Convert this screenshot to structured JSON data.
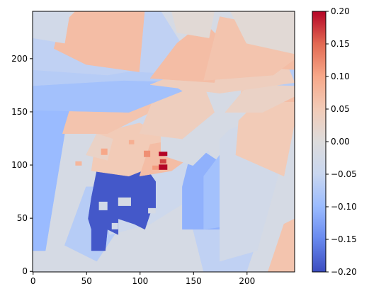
{
  "chart_data": {
    "type": "heatmap",
    "title": "",
    "xlabel": "",
    "ylabel": "",
    "image_size": [
      245,
      245
    ],
    "xlim": [
      -0.5,
      244.5
    ],
    "ylim": [
      244.5,
      -0.5
    ],
    "x_ticks": [
      0,
      50,
      100,
      150,
      200
    ],
    "y_ticks": [
      0,
      50,
      100,
      150,
      200
    ],
    "colorbar": {
      "colormap": "coolwarm",
      "vmin": -0.2,
      "vmax": 0.2,
      "ticks": [
        0.2,
        0.15,
        0.1,
        0.05,
        0.0,
        -0.05,
        -0.1,
        -0.15,
        -0.2
      ],
      "tick_labels": [
        "0.20",
        "0.15",
        "0.10",
        "0.05",
        "0.00",
        "−0.05",
        "−0.10",
        "−0.15",
        "−0.20"
      ],
      "stops": [
        "#3b4cc0",
        "#6788ee",
        "#9abbff",
        "#c9d7f0",
        "#dddcdc",
        "#f2cbb7",
        "#f7a889",
        "#e26952",
        "#b40426"
      ]
    },
    "background_value": 0.0,
    "regions": [
      {
        "shape": "rect",
        "x": [
          0,
          245
        ],
        "y": [
          0,
          245
        ],
        "value": -0.02
      },
      {
        "shape": "poly",
        "points": [
          [
            0,
            20
          ],
          [
            12,
            20
          ],
          [
            30,
            130
          ],
          [
            42,
            180
          ],
          [
            0,
            180
          ]
        ],
        "value": -0.1
      },
      {
        "shape": "poly",
        "points": [
          [
            30,
            25
          ],
          [
            60,
            10
          ],
          [
            80,
            40
          ],
          [
            70,
            80
          ],
          [
            50,
            80
          ]
        ],
        "value": -0.07
      },
      {
        "shape": "poly",
        "points": [
          [
            72,
            35
          ],
          [
            110,
            45
          ],
          [
            150,
            70
          ],
          [
            170,
            100
          ],
          [
            150,
            150
          ],
          [
            100,
            160
          ],
          [
            60,
            120
          ]
        ],
        "value": -0.04
      },
      {
        "shape": "poly",
        "points": [
          [
            160,
            0
          ],
          [
            200,
            0
          ],
          [
            210,
            30
          ],
          [
            200,
            60
          ],
          [
            170,
            65
          ],
          [
            150,
            40
          ]
        ],
        "value": -0.06
      },
      {
        "shape": "poly",
        "points": [
          [
            140,
            40
          ],
          [
            175,
            40
          ],
          [
            180,
            100
          ],
          [
            150,
            120
          ],
          [
            140,
            80
          ]
        ],
        "value": -0.11
      },
      {
        "shape": "poly",
        "points": [
          [
            160,
            40
          ],
          [
            195,
            45
          ],
          [
            200,
            100
          ],
          [
            175,
            110
          ],
          [
            160,
            90
          ]
        ],
        "value": -0.09
      },
      {
        "shape": "poly",
        "points": [
          [
            175,
            10
          ],
          [
            210,
            20
          ],
          [
            235,
            110
          ],
          [
            200,
            140
          ],
          [
            175,
            130
          ]
        ],
        "value": -0.03
      },
      {
        "shape": "poly",
        "points": [
          [
            220,
            0
          ],
          [
            245,
            0
          ],
          [
            245,
            50
          ],
          [
            235,
            45
          ]
        ],
        "value": 0.06
      },
      {
        "shape": "poly",
        "points": [
          [
            190,
            110
          ],
          [
            235,
            90
          ],
          [
            245,
            140
          ],
          [
            245,
            185
          ],
          [
            215,
            200
          ],
          [
            195,
            170
          ]
        ],
        "value": 0.05
      },
      {
        "shape": "poly",
        "points": [
          [
            235,
            160
          ],
          [
            245,
            160
          ],
          [
            245,
            200
          ],
          [
            232,
            195
          ]
        ],
        "value": 0.07
      },
      {
        "shape": "poly",
        "points": [
          [
            55,
            20
          ],
          [
            68,
            20
          ],
          [
            70,
            40
          ],
          [
            80,
            35
          ],
          [
            80,
            50
          ],
          [
            95,
            45
          ],
          [
            105,
            40
          ],
          [
            110,
            55
          ],
          [
            115,
            60
          ],
          [
            115,
            85
          ],
          [
            108,
            95
          ],
          [
            60,
            95
          ],
          [
            55,
            70
          ],
          [
            52,
            50
          ],
          [
            55,
            40
          ]
        ],
        "value": -0.19
      },
      {
        "shape": "poly",
        "points": [
          [
            55,
            95
          ],
          [
            90,
            90
          ],
          [
            115,
            100
          ],
          [
            125,
            110
          ],
          [
            120,
            130
          ],
          [
            100,
            140
          ],
          [
            60,
            130
          ]
        ],
        "value": 0.05
      },
      {
        "shape": "poly",
        "points": [
          [
            100,
            90
          ],
          [
            130,
            95
          ],
          [
            150,
            110
          ],
          [
            140,
            125
          ],
          [
            110,
            120
          ]
        ],
        "value": 0.07
      },
      {
        "shape": "poly",
        "points": [
          [
            50,
            110
          ],
          [
            70,
            105
          ],
          [
            75,
            125
          ],
          [
            60,
            130
          ]
        ],
        "value": 0.03
      },
      {
        "shape": "poly",
        "points": [
          [
            120,
            110
          ],
          [
            150,
            100
          ],
          [
            175,
            125
          ],
          [
            200,
            150
          ],
          [
            150,
            170
          ],
          [
            120,
            150
          ]
        ],
        "value": -0.02
      },
      {
        "shape": "poly",
        "points": [
          [
            28,
            130
          ],
          [
            70,
            130
          ],
          [
            110,
            150
          ],
          [
            120,
            170
          ],
          [
            90,
            180
          ],
          [
            40,
            170
          ]
        ],
        "value": 0.06
      },
      {
        "shape": "poly",
        "points": [
          [
            100,
            130
          ],
          [
            140,
            125
          ],
          [
            170,
            150
          ],
          [
            160,
            175
          ],
          [
            120,
            180
          ]
        ],
        "value": 0.04
      },
      {
        "shape": "poly",
        "points": [
          [
            180,
            150
          ],
          [
            215,
            150
          ],
          [
            245,
            165
          ],
          [
            245,
            180
          ],
          [
            205,
            180
          ]
        ],
        "value": 0.03
      },
      {
        "shape": "poly",
        "points": [
          [
            0,
            152
          ],
          [
            90,
            150
          ],
          [
            140,
            170
          ],
          [
            120,
            182
          ],
          [
            60,
            182
          ],
          [
            0,
            175
          ]
        ],
        "value": -0.09
      },
      {
        "shape": "poly",
        "points": [
          [
            0,
            175
          ],
          [
            85,
            180
          ],
          [
            160,
            178
          ],
          [
            245,
            175
          ],
          [
            245,
            190
          ],
          [
            0,
            190
          ]
        ],
        "value": -0.07
      },
      {
        "shape": "poly",
        "points": [
          [
            110,
            176
          ],
          [
            175,
            168
          ],
          [
            245,
            178
          ],
          [
            240,
            190
          ],
          [
            190,
            195
          ],
          [
            140,
            188
          ]
        ],
        "value": 0.04
      },
      {
        "shape": "poly",
        "points": [
          [
            0,
            190
          ],
          [
            70,
            185
          ],
          [
            100,
            190
          ],
          [
            40,
            215
          ],
          [
            0,
            220
          ]
        ],
        "value": -0.06
      },
      {
        "shape": "poly",
        "points": [
          [
            20,
            210
          ],
          [
            50,
            195
          ],
          [
            100,
            188
          ],
          [
            110,
            245
          ],
          [
            40,
            245
          ],
          [
            25,
            230
          ]
        ],
        "value": 0.07
      },
      {
        "shape": "poly",
        "points": [
          [
            100,
            188
          ],
          [
            140,
            186
          ],
          [
            145,
            205
          ],
          [
            120,
            245
          ],
          [
            105,
            245
          ]
        ],
        "value": -0.06
      },
      {
        "shape": "poly",
        "points": [
          [
            110,
            182
          ],
          [
            170,
            178
          ],
          [
            175,
            200
          ],
          [
            180,
            215
          ],
          [
            160,
            235
          ],
          [
            135,
            215
          ]
        ],
        "value": 0.07
      },
      {
        "shape": "poly",
        "points": [
          [
            160,
            180
          ],
          [
            225,
            185
          ],
          [
            245,
            200
          ],
          [
            245,
            220
          ],
          [
            200,
            235
          ],
          [
            175,
            240
          ]
        ],
        "value": 0.06
      },
      {
        "shape": "poly",
        "points": [
          [
            0,
            220
          ],
          [
            30,
            215
          ],
          [
            35,
            245
          ],
          [
            0,
            245
          ]
        ],
        "value": -0.03
      },
      {
        "shape": "poly",
        "points": [
          [
            200,
            215
          ],
          [
            245,
            205
          ],
          [
            245,
            245
          ],
          [
            185,
            245
          ]
        ],
        "value": 0.01
      },
      {
        "shape": "poly",
        "points": [
          [
            135,
            225
          ],
          [
            165,
            220
          ],
          [
            170,
            245
          ],
          [
            130,
            245
          ]
        ],
        "value": 0.01
      },
      {
        "shape": "rect",
        "x": [
          80,
          92
        ],
        "y": [
          62,
          70
        ],
        "value": -0.02
      },
      {
        "shape": "rect",
        "x": [
          62,
          70
        ],
        "y": [
          58,
          66
        ],
        "value": -0.03
      },
      {
        "shape": "rect",
        "x": [
          74,
          80
        ],
        "y": [
          40,
          46
        ],
        "value": -0.03
      },
      {
        "shape": "rect",
        "x": [
          108,
          115
        ],
        "y": [
          55,
          60
        ],
        "value": -0.02
      },
      {
        "shape": "rect",
        "x": [
          118,
          126
        ],
        "y": [
          96,
          101
        ],
        "value": 0.2
      },
      {
        "shape": "rect",
        "x": [
          119,
          125
        ],
        "y": [
          102,
          106
        ],
        "value": 0.17
      },
      {
        "shape": "rect",
        "x": [
          118,
          126
        ],
        "y": [
          109,
          113
        ],
        "value": 0.2
      },
      {
        "shape": "rect",
        "x": [
          64,
          70
        ],
        "y": [
          110,
          116
        ],
        "value": 0.1
      },
      {
        "shape": "rect",
        "x": [
          90,
          95
        ],
        "y": [
          120,
          124
        ],
        "value": 0.09
      },
      {
        "shape": "rect",
        "x": [
          104,
          110
        ],
        "y": [
          108,
          114
        ],
        "value": 0.12
      },
      {
        "shape": "rect",
        "x": [
          112,
          118
        ],
        "y": [
          96,
          100
        ],
        "value": 0.11
      },
      {
        "shape": "rect",
        "x": [
          40,
          46
        ],
        "y": [
          100,
          104
        ],
        "value": 0.08
      }
    ]
  }
}
